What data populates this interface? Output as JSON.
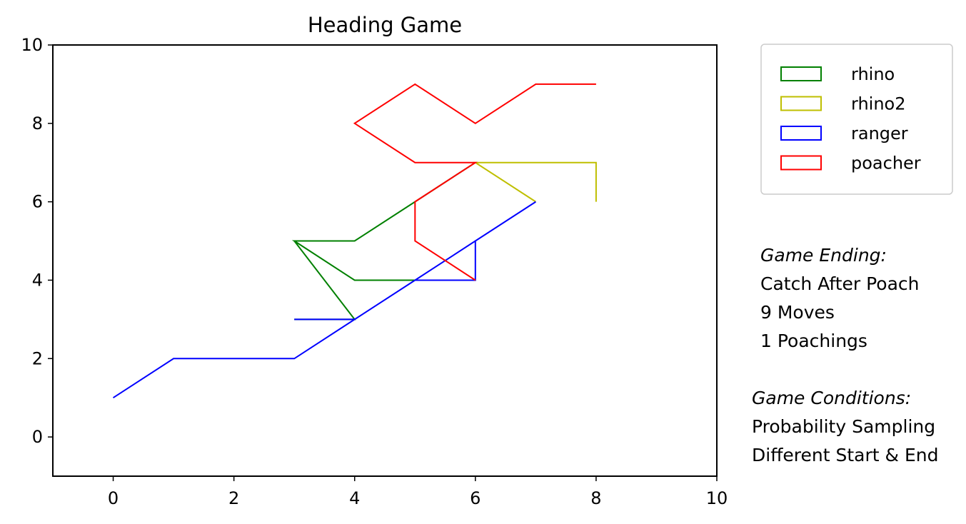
{
  "chart_data": {
    "type": "line",
    "title": "Heading Game",
    "xlabel": "",
    "ylabel": "",
    "xlim": [
      -1,
      10
    ],
    "ylim": [
      -1,
      10
    ],
    "xticks": [
      0,
      2,
      4,
      6,
      8,
      10
    ],
    "yticks": [
      0,
      2,
      4,
      6,
      8,
      10
    ],
    "grid": false,
    "legend_position": "outside-top-right",
    "series": [
      {
        "name": "rhino",
        "color": "#008000",
        "x": [
          3,
          4,
          3,
          4,
          5,
          4,
          3,
          4,
          5,
          6
        ],
        "y": [
          3,
          3,
          5,
          4,
          4,
          4,
          5,
          5,
          6,
          7
        ]
      },
      {
        "name": "rhino2",
        "color": "#bfbf00",
        "x": [
          8,
          8,
          7,
          6,
          7,
          6,
          7,
          8
        ],
        "y": [
          6,
          7,
          7,
          7,
          6,
          7,
          7,
          7
        ]
      },
      {
        "name": "ranger",
        "color": "#0000ff",
        "x": [
          0,
          1,
          2,
          3,
          4,
          5,
          6,
          7,
          6,
          6,
          5,
          4,
          3
        ],
        "y": [
          1,
          2,
          2,
          2,
          3,
          4,
          5,
          6,
          5,
          4,
          4,
          3,
          3
        ]
      },
      {
        "name": "poacher",
        "color": "#ff0000",
        "x": [
          8,
          7,
          6,
          5,
          4,
          5,
          6,
          5,
          5,
          6,
          6,
          5,
          5,
          6
        ],
        "y": [
          9,
          9,
          8,
          9,
          8,
          7,
          7,
          6,
          5,
          4,
          4,
          5,
          6,
          7
        ]
      }
    ]
  },
  "game_ending": {
    "header": "Game Ending:",
    "reason": "Catch After Poach",
    "moves": "9 Moves",
    "poachings": "1 Poachings"
  },
  "game_conditions": {
    "header": "Game Conditions:",
    "sampling": "Probability Sampling",
    "positions": "Different Start & End"
  }
}
